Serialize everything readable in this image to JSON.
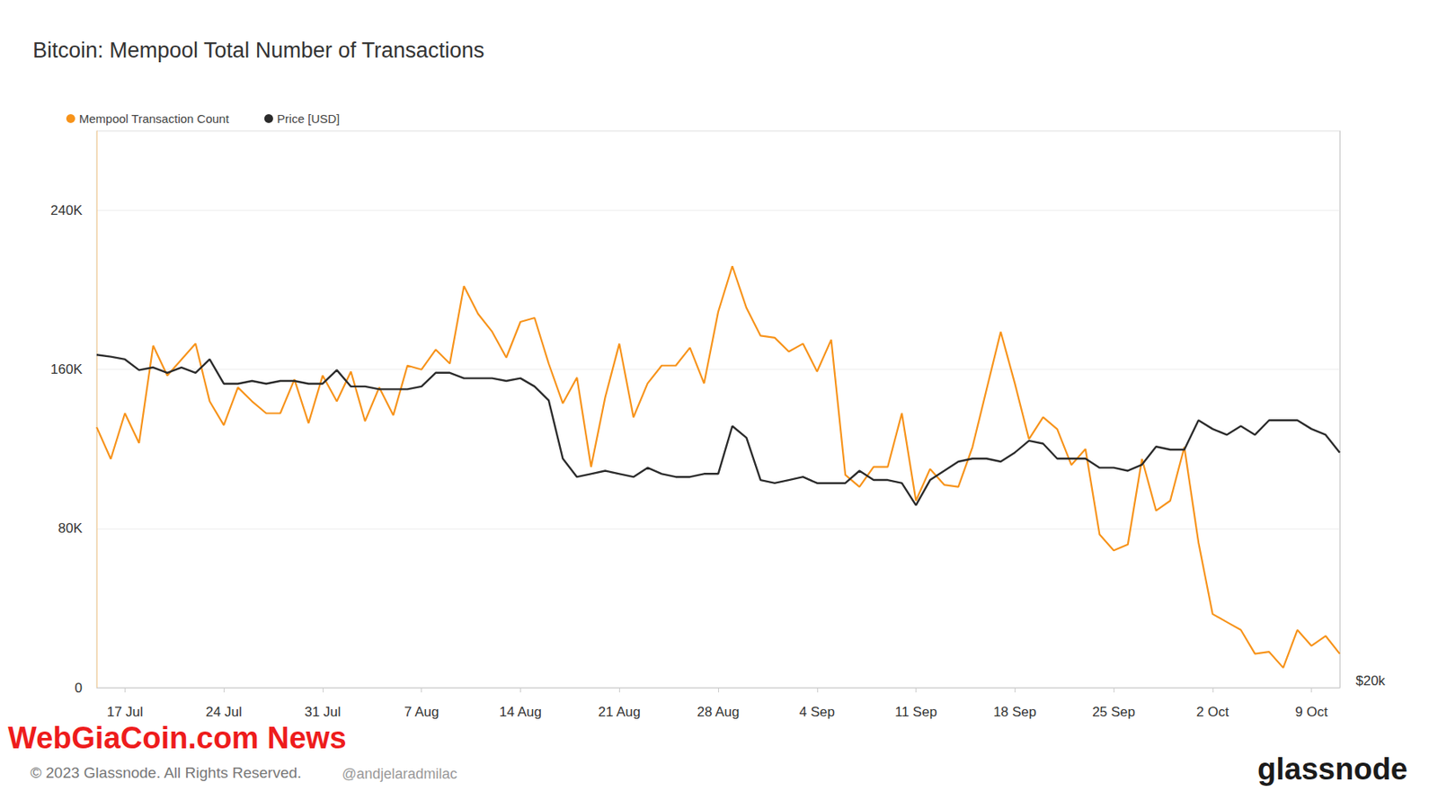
{
  "chart_data": {
    "type": "line",
    "title": "Bitcoin: Mempool Total Number of Transactions",
    "legend": "top-left",
    "grid": true,
    "log": "y2",
    "categories": [
      null,
      null,
      "17 Jul",
      null,
      null,
      null,
      null,
      null,
      null,
      "24 Jul",
      null,
      null,
      null,
      null,
      null,
      null,
      "31 Jul",
      null,
      null,
      null,
      null,
      null,
      null,
      "7 Aug",
      null,
      null,
      null,
      null,
      null,
      null,
      "14 Aug",
      null,
      null,
      null,
      null,
      null,
      null,
      "21 Aug",
      null,
      null,
      null,
      null,
      null,
      null,
      "28 Aug",
      null,
      null,
      null,
      null,
      null,
      null,
      "4 Sep",
      null,
      null,
      null,
      null,
      null,
      null,
      "11 Sep",
      null,
      null,
      null,
      null,
      null,
      null,
      "18 Sep",
      null,
      null,
      null,
      null,
      null,
      null,
      "25 Sep",
      null,
      null,
      null,
      null,
      null,
      null,
      "2 Oct",
      null,
      null,
      null,
      null,
      null,
      null,
      "9 Oct",
      null,
      null
    ],
    "ylim": [
      0,
      280000
    ],
    "yticks": [
      0,
      {
        "value": 80000,
        "label": "80K"
      },
      {
        "value": 160000,
        "label": "160K"
      },
      {
        "value": 240000,
        "label": "240K"
      }
    ],
    "y2lim": [
      20000,
      40000
    ],
    "y2ticks": [
      {
        "value": 20000,
        "label": "$20k"
      }
    ],
    "series": [
      {
        "name": "Mempool Transaction Count",
        "color": "#f7931a",
        "values": [
          131000,
          115000,
          138000,
          123000,
          172000,
          157000,
          165000,
          173000,
          144000,
          132000,
          151000,
          144000,
          138000,
          138000,
          155000,
          133000,
          157000,
          144000,
          159000,
          134000,
          151000,
          137000,
          162000,
          160000,
          170000,
          163000,
          202000,
          188000,
          179000,
          166000,
          184000,
          186000,
          163000,
          143000,
          156000,
          111000,
          146000,
          173000,
          136000,
          153000,
          162000,
          162000,
          171000,
          153000,
          189000,
          212000,
          191000,
          177000,
          176000,
          169000,
          173000,
          159000,
          175000,
          107000,
          101000,
          111000,
          111000,
          138000,
          94000,
          110000,
          102000,
          101000,
          121000,
          150000,
          179000,
          153000,
          125000,
          136000,
          130000,
          112000,
          120000,
          77000,
          69000,
          72000,
          115000,
          89000,
          94000,
          121000,
          73000,
          37000,
          33000,
          29000,
          17000,
          18000,
          10000,
          29000,
          21000,
          26000,
          17000
        ]
      },
      {
        "name": "Price [USD]",
        "color": "#2b2b2b",
        "axis": "y2",
        "values": [
          30270,
          30200,
          30100,
          29700,
          29800,
          29600,
          29800,
          29600,
          30100,
          29200,
          29200,
          29300,
          29200,
          29300,
          29300,
          29200,
          29200,
          29700,
          29100,
          29100,
          29000,
          29000,
          29000,
          29100,
          29600,
          29600,
          29400,
          29400,
          29400,
          29300,
          29400,
          29100,
          28600,
          26600,
          26000,
          26100,
          26200,
          26100,
          26000,
          26300,
          26100,
          26000,
          26000,
          26100,
          26100,
          27700,
          27300,
          25900,
          25800,
          25900,
          26000,
          25800,
          25800,
          25800,
          26200,
          25900,
          25900,
          25800,
          25100,
          25900,
          26200,
          26500,
          26600,
          26600,
          26500,
          26800,
          27200,
          27100,
          26600,
          26600,
          26600,
          26300,
          26300,
          26200,
          26400,
          27000,
          26900,
          26900,
          27900,
          27600,
          27400,
          27700,
          27400,
          27900,
          27900,
          27900,
          27600,
          27400,
          26800
        ]
      }
    ],
    "annotations": [
      {
        "text": "WebGiaCoin.com News"
      },
      {
        "text": "© 2023 Glassnode. All Rights Reserved."
      },
      {
        "text": "@andjelaradmilac"
      },
      {
        "text": "glassnode"
      }
    ]
  }
}
